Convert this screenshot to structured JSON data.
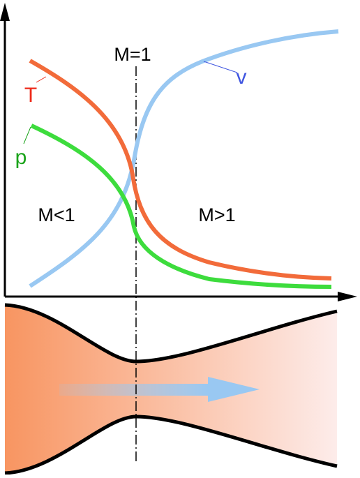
{
  "labels": {
    "sonic": "M=1",
    "subsonic": "M<1",
    "supersonic": "M>1",
    "velocity": "v",
    "temperature": "T",
    "pressure": "p"
  },
  "colors": {
    "velocity": "#99c8f2",
    "temperature": "#f26b3a",
    "pressure": "#3ddc3d",
    "velocity_label": "#3f55e0",
    "temperature_label": "#ee2a1a",
    "pressure_label": "#1aa31a",
    "nozzle_inlet": "#f89561",
    "nozzle_outlet": "#fdecea",
    "axis": "#000000"
  },
  "icons": {
    "flow": "right-arrow-icon"
  }
}
